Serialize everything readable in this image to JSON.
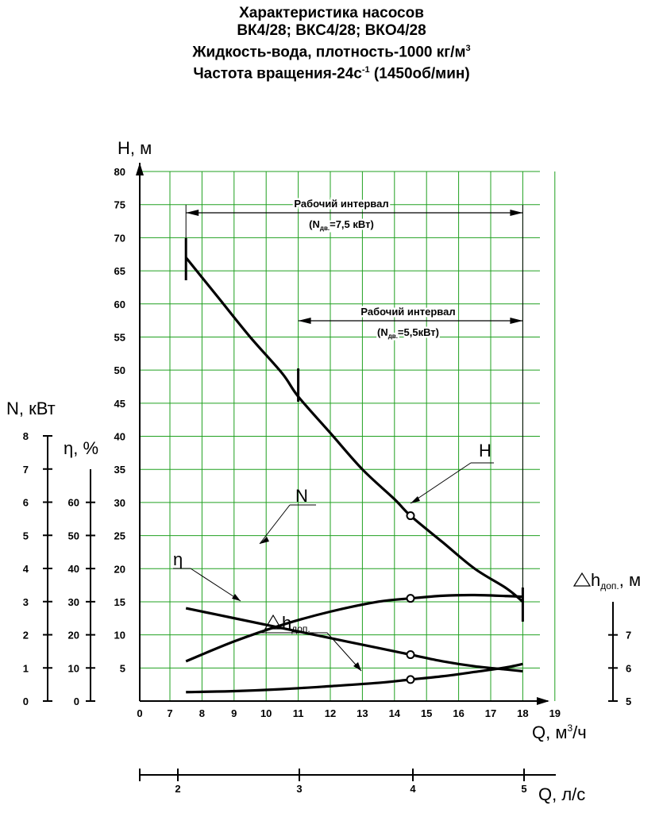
{
  "titles": {
    "line1": "Характеристика насосов",
    "line2": "ВК4/28; ВКС4/28; ВКО4/28",
    "line3_main": "Жидкость-вода, плотность-1000 кг/м",
    "line3_sup": "3",
    "line4_main": "Частота вращения-24с",
    "line4_sup": "-1",
    "line4_tail": " (1450об/мин)"
  },
  "chart_data": {
    "type": "line",
    "axes": {
      "H": {
        "label": "Н, м",
        "ticks": [
          "80",
          "75",
          "70",
          "65",
          "60",
          "55",
          "50",
          "45",
          "40",
          "35",
          "30",
          "25",
          "20",
          "15",
          "10",
          "5"
        ],
        "ylim": [
          0,
          80
        ]
      },
      "N": {
        "label": "N, кВт",
        "ticks": [
          "8",
          "7",
          "6",
          "5",
          "4",
          "3",
          "2",
          "1",
          "0"
        ],
        "ylim": [
          0,
          8
        ]
      },
      "eta": {
        "label": "η, %",
        "ticks": [
          "60",
          "50",
          "40",
          "30",
          "20",
          "10",
          "0"
        ],
        "ylim": [
          0,
          70
        ]
      },
      "dh": {
        "label_main": "h",
        "label_sub": "доп.",
        "label_tail": ", м",
        "ticks": [
          "7",
          "6",
          "5"
        ],
        "ylim": [
          5,
          8
        ]
      },
      "Q_m3h": {
        "label_main": "Q, м",
        "label_sup": "3",
        "label_tail": "/ч",
        "ticks": [
          "0",
          "7",
          "8",
          "9",
          "10",
          "11",
          "12",
          "13",
          "14",
          "15",
          "16",
          "17",
          "18",
          "19"
        ]
      },
      "Q_ls": {
        "label": "Q, л/с",
        "ticks": [
          "2",
          "3",
          "4",
          "5"
        ]
      }
    },
    "grid": true,
    "series": [
      {
        "name": "Н",
        "axis": "H",
        "x": [
          7.5,
          8.5,
          9.5,
          10.5,
          11.0,
          12.0,
          13.0,
          14.0,
          14.5,
          15.5,
          16.5,
          17.5,
          18.0
        ],
        "y": [
          67,
          61,
          55,
          49.5,
          46,
          40.5,
          35,
          30.5,
          28,
          24,
          20,
          17,
          15
        ]
      },
      {
        "name": "N",
        "axis": "N",
        "x": [
          7.5,
          9,
          10.5,
          12,
          13.5,
          14.5,
          15.5,
          16.5,
          17.5,
          18.0
        ],
        "y": [
          2.8,
          2.5,
          2.2,
          1.9,
          1.6,
          1.4,
          1.2,
          1.05,
          0.95,
          0.9
        ]
      },
      {
        "name": "η",
        "axis": "eta",
        "x": [
          7.5,
          9,
          10.5,
          12,
          13.5,
          14.5,
          15.5,
          16.5,
          17.5,
          18.0
        ],
        "y": [
          12,
          18,
          23,
          27,
          30,
          31,
          31.8,
          32,
          31.7,
          31.5
        ]
      },
      {
        "name": "h доп.",
        "axis": "dh",
        "x": [
          7.5,
          9,
          10.5,
          12,
          13.5,
          14.5,
          15.5,
          16.5,
          17.5,
          18.0
        ],
        "y": [
          5.27,
          5.3,
          5.36,
          5.45,
          5.55,
          5.65,
          5.75,
          5.88,
          6.02,
          6.12
        ]
      }
    ],
    "markers": [
      {
        "series": "Н",
        "x": 14.5,
        "y": 28
      },
      {
        "series": "N",
        "x": 14.5,
        "y": 1.4
      },
      {
        "series": "η",
        "x": 14.5,
        "y": 31
      },
      {
        "series": "h доп.",
        "x": 14.5,
        "y": 5.65
      }
    ],
    "curve_labels": {
      "H": "Н",
      "N": "N",
      "eta": "η",
      "dh_main": "h",
      "dh_sub": "доп."
    },
    "intervals": [
      {
        "title": "Рабочий интервал",
        "note_main": "(N",
        "note_sub": "дв.",
        "note_tail": "=7,5 кВт)",
        "from": 7.5,
        "to": 18.0
      },
      {
        "title": "Рабочий интервал",
        "note_main": "(N",
        "note_sub": "дв.",
        "note_tail": "=5,5кВт)",
        "from": 11.0,
        "to": 18.0
      }
    ]
  }
}
